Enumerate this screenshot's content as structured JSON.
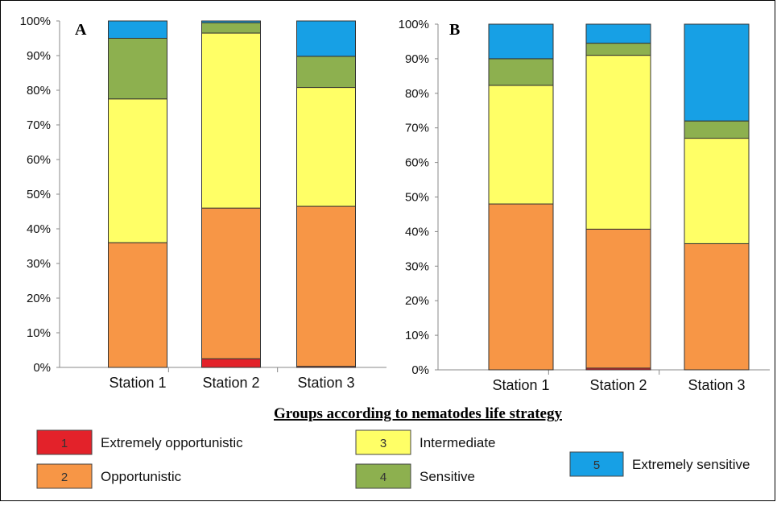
{
  "chart_data": [
    {
      "type": "bar",
      "stacked": true,
      "panel_label": "A",
      "categories": [
        "Station 1",
        "Station 2",
        "Station 3"
      ],
      "y_ticks": [
        "0%",
        "10%",
        "20%",
        "30%",
        "40%",
        "50%",
        "60%",
        "70%",
        "80%",
        "90%",
        "100%"
      ],
      "ylim": [
        0,
        100
      ],
      "series": [
        {
          "name": "Extremely opportunistic",
          "values": [
            0,
            2.5,
            0.3
          ]
        },
        {
          "name": "Opportunistic",
          "values": [
            36,
            43.5,
            46.2
          ]
        },
        {
          "name": "Intermediate",
          "values": [
            41.5,
            50.5,
            34.3
          ]
        },
        {
          "name": "Sensitive",
          "values": [
            17.5,
            3,
            9
          ]
        },
        {
          "name": "Extremely sensitive",
          "values": [
            5,
            0.5,
            10.2
          ]
        }
      ]
    },
    {
      "type": "bar",
      "stacked": true,
      "panel_label": "B",
      "categories": [
        "Station 1",
        "Station 2",
        "Station 3"
      ],
      "y_ticks": [
        "0%",
        "10%",
        "20%",
        "30%",
        "40%",
        "50%",
        "60%",
        "70%",
        "80%",
        "90%",
        "100%"
      ],
      "ylim": [
        0,
        100
      ],
      "series": [
        {
          "name": "Extremely opportunistic",
          "values": [
            0,
            0.5,
            0
          ]
        },
        {
          "name": "Opportunistic",
          "values": [
            48,
            40.2,
            36.5
          ]
        },
        {
          "name": "Intermediate",
          "values": [
            34.3,
            50.3,
            30.5
          ]
        },
        {
          "name": "Sensitive",
          "values": [
            7.7,
            3.5,
            5
          ]
        },
        {
          "name": "Extremely sensitive",
          "values": [
            10,
            5.5,
            28
          ]
        }
      ]
    }
  ],
  "legend": {
    "title": "Groups according to nematodes life strategy",
    "items": [
      {
        "num": "1",
        "label": "Extremely opportunistic",
        "color": "#e3222a"
      },
      {
        "num": "2",
        "label": "Opportunistic",
        "color": "#f79646"
      },
      {
        "num": "3",
        "label": "Intermediate",
        "color": "#ffff66"
      },
      {
        "num": "4",
        "label": "Sensitive",
        "color": "#8db04f"
      },
      {
        "num": "5",
        "label": "Extremely sensitive",
        "color": "#17a0e5"
      }
    ]
  },
  "colors": {
    "Extremely opportunistic": "#e3222a",
    "Opportunistic": "#f79646",
    "Intermediate": "#ffff66",
    "Sensitive": "#8db04f",
    "Extremely sensitive": "#17a0e5"
  }
}
